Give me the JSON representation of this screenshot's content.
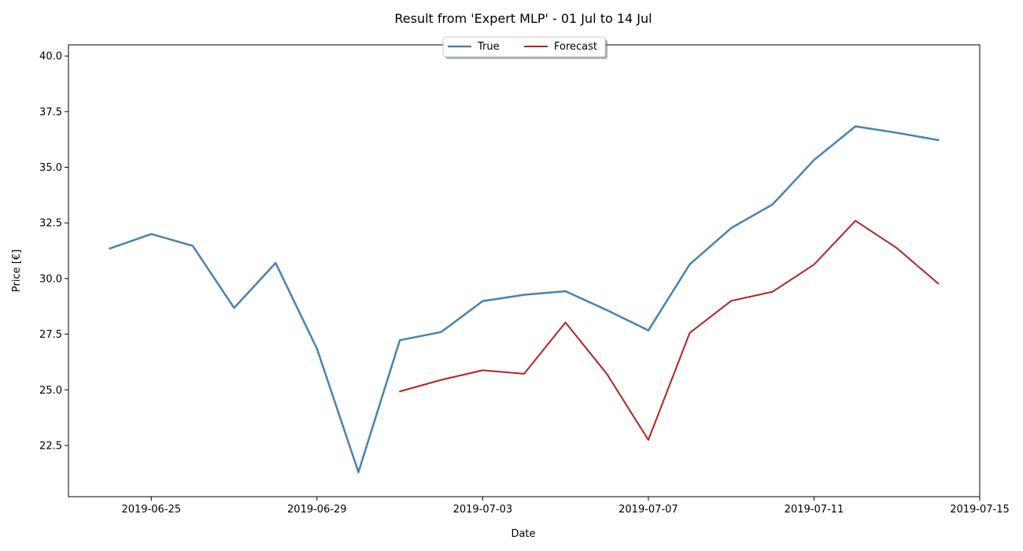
{
  "chart_data": {
    "type": "line",
    "title": "Result from 'Expert MLP' - 01 Jul to 14 Jul",
    "xlabel": "Date",
    "ylabel": "Price [€]",
    "xlim": [
      "2019-06-23",
      "2019-07-15"
    ],
    "ylim": [
      20.2,
      40.5
    ],
    "x_ticks": [
      "2019-06-25",
      "2019-06-29",
      "2019-07-03",
      "2019-07-07",
      "2019-07-11",
      "2019-07-15"
    ],
    "y_ticks": [
      22.5,
      25.0,
      27.5,
      30.0,
      32.5,
      35.0,
      37.5,
      40.0
    ],
    "y_tick_labels": [
      "22.5",
      "25.0",
      "27.5",
      "30.0",
      "32.5",
      "35.0",
      "37.5",
      "40.0"
    ],
    "grid": false,
    "legend_position": "top-center",
    "series": [
      {
        "name": "True",
        "color": "#4682b4",
        "x": [
          "2019-06-24",
          "2019-06-25",
          "2019-06-26",
          "2019-06-27",
          "2019-06-28",
          "2019-06-29",
          "2019-06-30",
          "2019-07-01",
          "2019-07-02",
          "2019-07-03",
          "2019-07-04",
          "2019-07-05",
          "2019-07-06",
          "2019-07-07",
          "2019-07-08",
          "2019-07-09",
          "2019-07-10",
          "2019-07-11",
          "2019-07-12",
          "2019-07-13",
          "2019-07-14"
        ],
        "values": [
          31.35,
          32.0,
          31.47,
          28.68,
          30.7,
          26.85,
          21.3,
          27.23,
          27.6,
          28.99,
          29.27,
          29.43,
          28.58,
          27.67,
          30.64,
          32.27,
          33.33,
          35.33,
          36.84,
          36.55,
          36.22
        ]
      },
      {
        "name": "Forecast",
        "color": "#b22222",
        "x": [
          "2019-07-01",
          "2019-07-02",
          "2019-07-03",
          "2019-07-04",
          "2019-07-05",
          "2019-07-06",
          "2019-07-07",
          "2019-07-08",
          "2019-07-09",
          "2019-07-10",
          "2019-07-11",
          "2019-07-12",
          "2019-07-13",
          "2019-07-14"
        ],
        "values": [
          24.93,
          25.45,
          25.88,
          25.72,
          28.03,
          25.71,
          22.75,
          27.56,
          29.0,
          29.41,
          30.63,
          32.6,
          31.37,
          29.77
        ]
      }
    ]
  }
}
